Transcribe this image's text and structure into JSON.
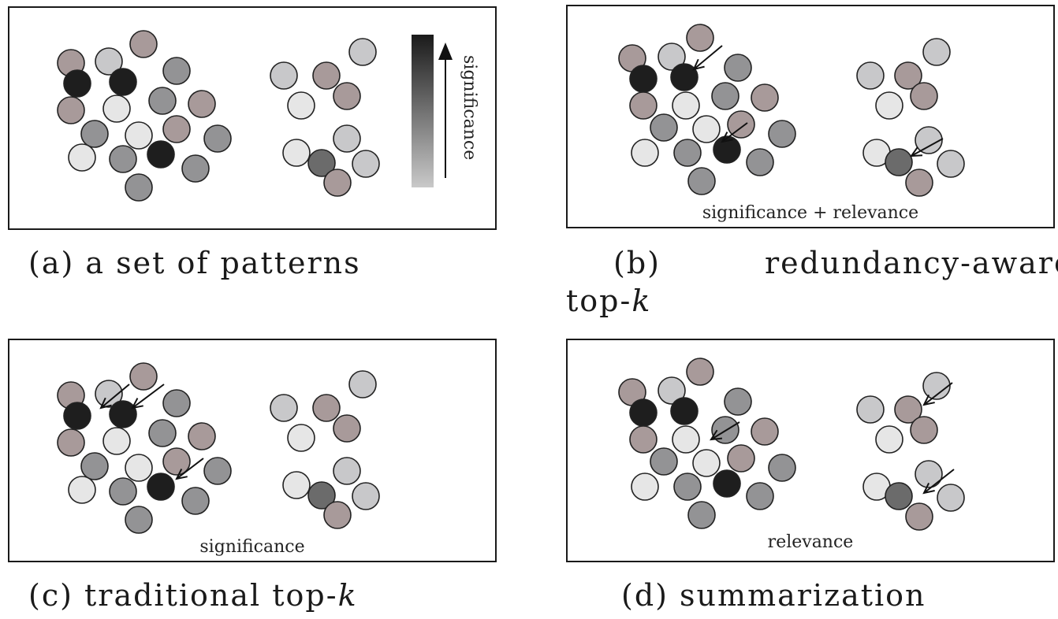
{
  "panels": {
    "a": {
      "caption": "(a) a set of patterns",
      "inner_label": "",
      "legend_label": "significance"
    },
    "b": {
      "caption_part1": "(b)",
      "caption_part2": "redundancy-aware",
      "caption_line2": "top-k",
      "inner_label": "significance + relevance"
    },
    "c": {
      "caption": "(c) traditional top-k",
      "inner_label": "significance"
    },
    "d": {
      "caption": "(d) summarization",
      "inner_label": "relevance"
    }
  },
  "colors": {
    "black": "#1e1e1e",
    "dark_gray": "#6b6b6b",
    "mid_gray": "#939395",
    "light_gray": "#c8c8ca",
    "very_light": "#e6e6e6",
    "mauve": "#a89a9a",
    "stroke": "#222222"
  }
}
